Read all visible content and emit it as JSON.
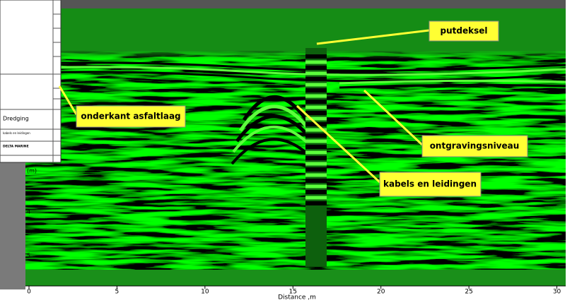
{
  "annotations": [
    "putdeksel",
    "onderkant asfaltlaag",
    "ontgravingsniveau",
    "kabels en leidingen"
  ],
  "x_axis": {
    "label": "Distance ,m",
    "ticks": [
      0,
      5,
      10,
      15,
      20,
      25,
      30
    ],
    "xlim": [
      0,
      30.5
    ]
  },
  "y_axis": {
    "ticks": [
      "(m)",
      "4",
      "5"
    ]
  },
  "document": {
    "lines": [
      "Dredging",
      "kabels en leidingen",
      "DELTA MARINE"
    ]
  }
}
